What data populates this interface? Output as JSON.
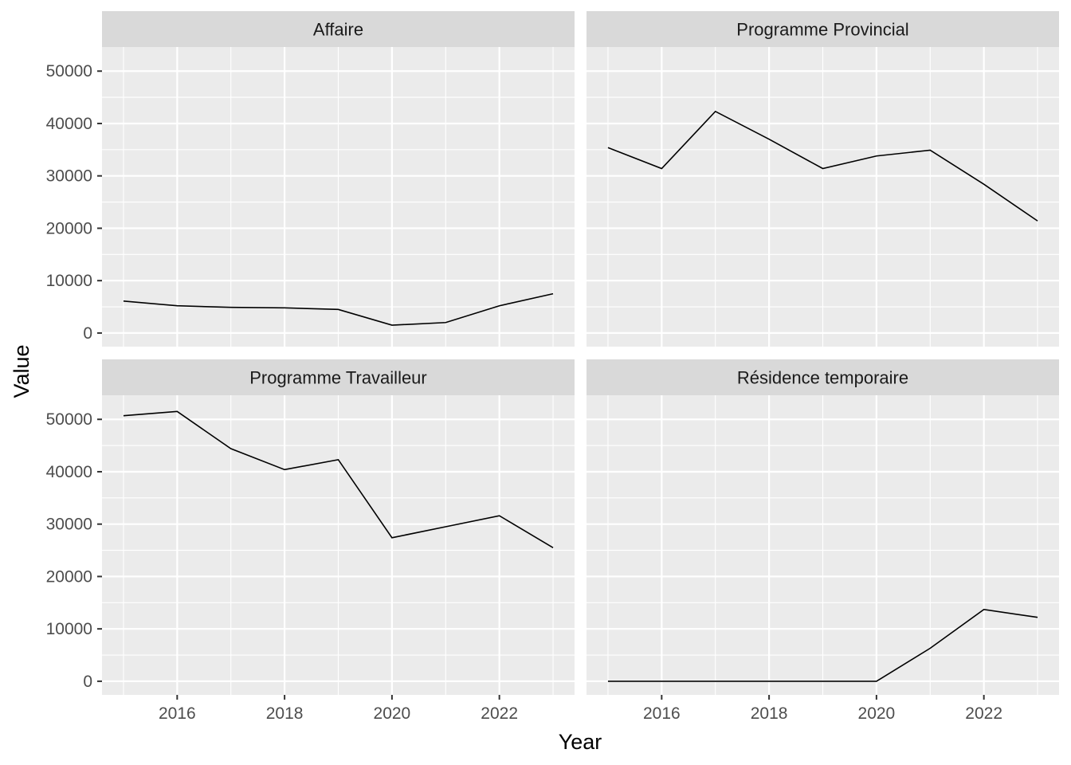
{
  "chart_data": {
    "type": "line",
    "layout": "facet_wrap 2x2",
    "xlabel": "Year",
    "ylabel": "Value",
    "xlim": [
      2014.6,
      2023.4
    ],
    "ylim": [
      -2600,
      54600
    ],
    "x_ticks": [
      2016,
      2018,
      2020,
      2022
    ],
    "y_ticks": [
      0,
      10000,
      20000,
      30000,
      40000,
      50000
    ],
    "grid": true,
    "x": [
      2015,
      2016,
      2017,
      2018,
      2019,
      2020,
      2021,
      2022,
      2023
    ],
    "panels": [
      {
        "title": "Affaire",
        "values": [
          6100,
          5200,
          4900,
          4800,
          4500,
          1500,
          2000,
          5200,
          7500
        ]
      },
      {
        "title": "Programme Provincial",
        "values": [
          35400,
          31400,
          42300,
          37000,
          31400,
          33800,
          34900,
          28400,
          21400
        ]
      },
      {
        "title": "Programme Travailleur",
        "values": [
          50700,
          51500,
          44400,
          40400,
          42300,
          27400,
          29500,
          31600,
          25500
        ]
      },
      {
        "title": "Résidence temporaire",
        "values": [
          0,
          0,
          0,
          0,
          0,
          0,
          6300,
          13700,
          12200
        ]
      }
    ]
  }
}
